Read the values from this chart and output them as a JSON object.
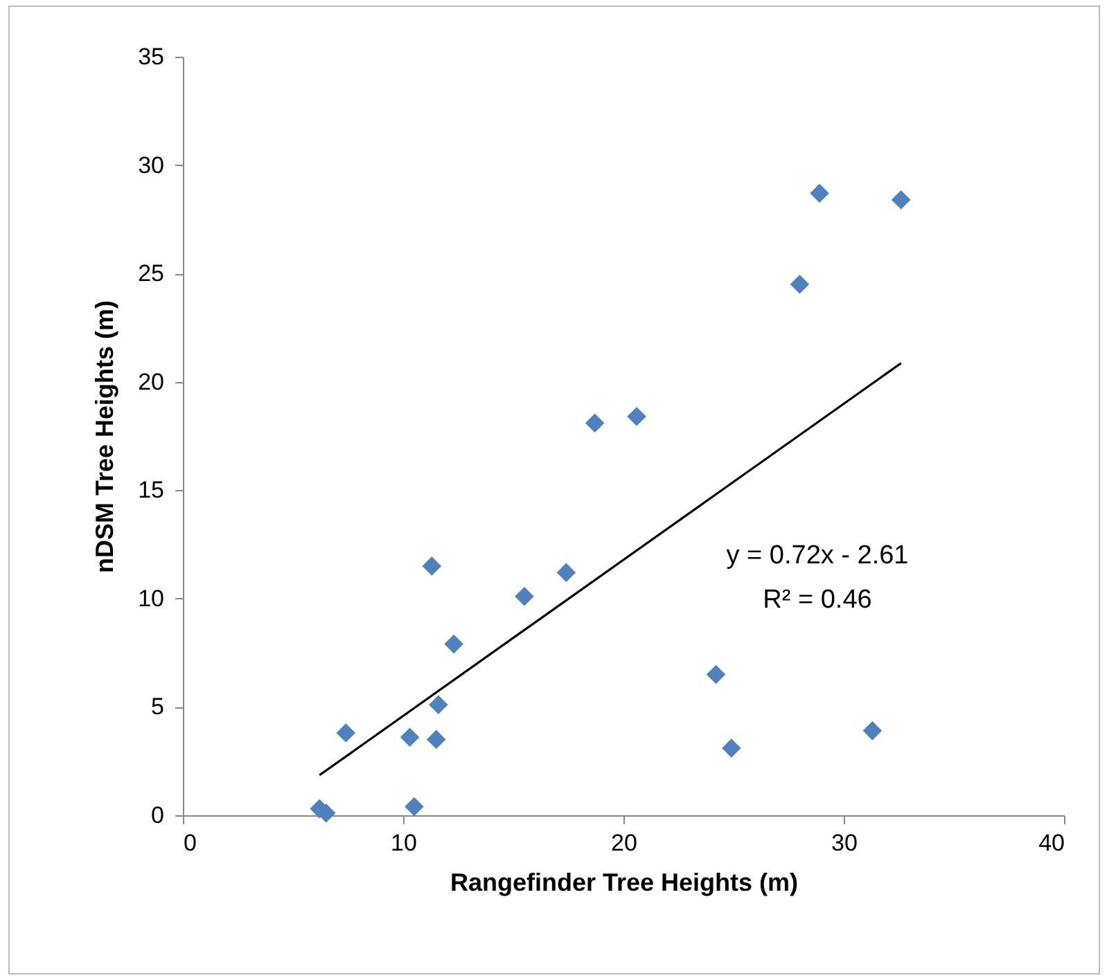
{
  "chart_data": {
    "type": "scatter",
    "xlabel": "Rangefinder Tree Heights (m)",
    "ylabel": "nDSM Tree Heights (m)",
    "xlim": [
      0,
      40
    ],
    "xticks": [
      0,
      10,
      20,
      30,
      40
    ],
    "ylim": [
      0,
      35
    ],
    "yticks": [
      0,
      5,
      10,
      15,
      20,
      25,
      30,
      35
    ],
    "grid": false,
    "series": [
      {
        "type": "scatter",
        "color": "#4f81bd",
        "marker": "diamond",
        "x": [
          11.3,
          17.4,
          15.5,
          12.3,
          7.4,
          10.3,
          11.5,
          11.6,
          6.2,
          6.5,
          10.5,
          28.9,
          32.6,
          28.0,
          18.7,
          20.6,
          24.2,
          24.9,
          31.3
        ],
        "values": [
          11.5,
          11.2,
          10.1,
          7.9,
          3.8,
          3.6,
          3.5,
          5.1,
          0.3,
          0.1,
          0.4,
          28.7,
          28.4,
          24.5,
          18.1,
          18.4,
          6.5,
          3.1,
          3.9
        ]
      },
      {
        "type": "line",
        "color": "#000000",
        "x": [
          6.2,
          32.6
        ],
        "values": [
          1.85,
          20.86
        ],
        "line_style": "solid"
      }
    ],
    "annotations": [
      "y = 0.72x - 2.61",
      "R² = 0.46"
    ]
  }
}
